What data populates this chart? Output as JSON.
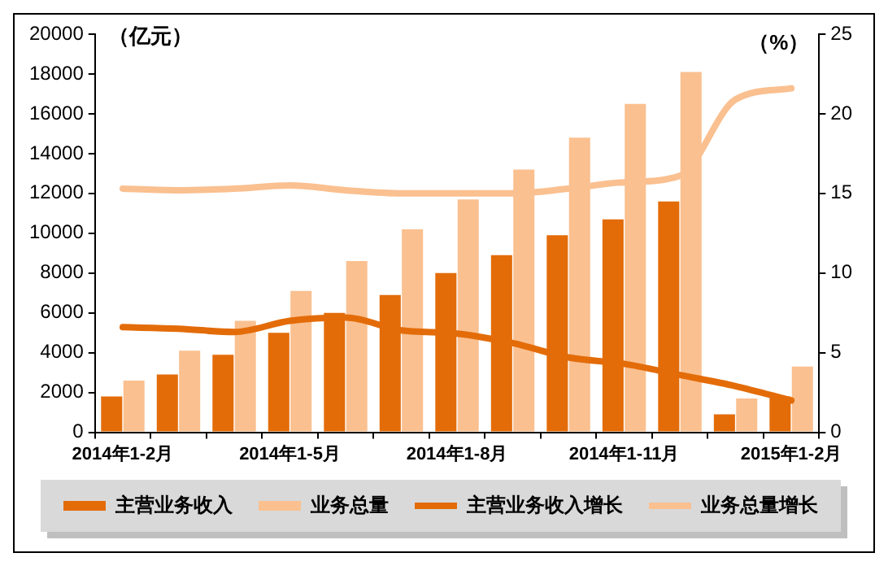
{
  "chart_data": {
    "type": "bar",
    "ylabel": "（亿元）",
    "y2label": "（%）",
    "categories": [
      "2014年1-2月",
      null,
      null,
      "2014年1-5月",
      null,
      null,
      "2014年1-8月",
      null,
      null,
      "2014年1-11月",
      null,
      null,
      "2015年1-2月"
    ],
    "series": [
      {
        "name": "主营业务收入",
        "color": "#e36c09",
        "values": [
          1800,
          2900,
          3900,
          5000,
          6000,
          6900,
          8000,
          8900,
          9900,
          10700,
          11600,
          900,
          1800
        ]
      },
      {
        "name": "业务总量",
        "color": "#fac090",
        "values": [
          2600,
          4100,
          5600,
          7100,
          8600,
          10200,
          11700,
          13200,
          14800,
          16500,
          18100,
          1700,
          3300
        ]
      },
      {
        "name": "主营业务收入增长",
        "type": "line",
        "axis": "y2",
        "color": "#e36c09",
        "values": [
          6.6,
          6.5,
          6.3,
          7.0,
          7.2,
          6.4,
          6.2,
          5.6,
          4.7,
          4.3,
          3.6,
          2.9,
          2.0
        ]
      },
      {
        "name": "业务总量增长",
        "type": "line",
        "axis": "y2",
        "color": "#fac090",
        "values": [
          15.3,
          15.2,
          15.3,
          15.5,
          15.2,
          15.0,
          15.0,
          15.0,
          15.3,
          15.7,
          16.1,
          20.9,
          21.6
        ]
      }
    ],
    "ylim": [
      0,
      20000
    ],
    "yticks": [
      0,
      2000,
      4000,
      6000,
      8000,
      10000,
      12000,
      14000,
      16000,
      18000,
      20000
    ],
    "y2lim": [
      0,
      25
    ],
    "y2ticks": [
      0,
      5,
      10,
      15,
      20,
      25
    ],
    "grid": false,
    "legend": "bottom",
    "marker": "none"
  }
}
